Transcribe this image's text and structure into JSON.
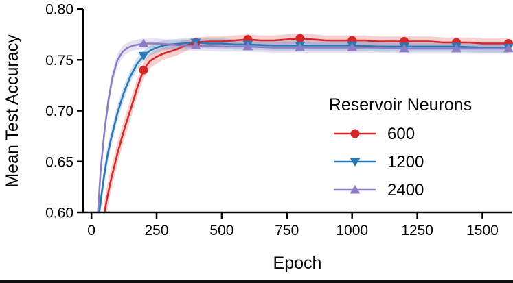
{
  "figure": {
    "background": "#ffffff",
    "axis_color": "#000000"
  },
  "chart_data": {
    "type": "line",
    "title": "",
    "xlabel": "Epoch",
    "ylabel": "Mean Test Accuracy",
    "xlim": [
      -32,
      1612
    ],
    "ylim": [
      0.6,
      0.8
    ],
    "grid": false,
    "xticks": {
      "values": [
        0,
        250,
        500,
        750,
        1000,
        1250,
        1500
      ],
      "labels": [
        "0",
        "250",
        "500",
        "750",
        "1000",
        "1250",
        "1500"
      ]
    },
    "yticks": {
      "values": [
        0.6,
        0.65,
        0.7,
        0.75,
        0.8
      ],
      "labels": [
        "0.60",
        "0.65",
        "0.70",
        "0.75",
        "0.80"
      ]
    },
    "legend": {
      "title": "Reservoir Neurons",
      "position": "center-right"
    },
    "marker_epochs": [
      200,
      400,
      600,
      800,
      1000,
      1200,
      1400,
      1600
    ],
    "band_opacity": 0.22,
    "series": [
      {
        "name": "600",
        "color": "#d62728",
        "marker": "circle",
        "x": [
          50,
          60,
          75,
          100,
          125,
          150,
          175,
          200,
          225,
          250,
          275,
          300,
          325,
          350,
          375,
          400,
          450,
          500,
          550,
          600,
          650,
          700,
          750,
          800,
          850,
          900,
          950,
          1000,
          1050,
          1100,
          1150,
          1200,
          1250,
          1300,
          1350,
          1400,
          1450,
          1500,
          1550,
          1600
        ],
        "y": [
          0.6,
          0.614,
          0.632,
          0.658,
          0.681,
          0.701,
          0.722,
          0.74,
          0.749,
          0.753,
          0.756,
          0.758,
          0.76,
          0.763,
          0.765,
          0.767,
          0.768,
          0.768,
          0.769,
          0.77,
          0.769,
          0.769,
          0.77,
          0.771,
          0.77,
          0.769,
          0.769,
          0.769,
          0.769,
          0.768,
          0.768,
          0.768,
          0.768,
          0.768,
          0.767,
          0.767,
          0.767,
          0.766,
          0.766,
          0.766
        ],
        "band": [
          0.012,
          0.012,
          0.011,
          0.011,
          0.01,
          0.01,
          0.009,
          0.008,
          0.007,
          0.007,
          0.006,
          0.006,
          0.006,
          0.006,
          0.005,
          0.005,
          0.005,
          0.005,
          0.005,
          0.005,
          0.005,
          0.005,
          0.005,
          0.005,
          0.005,
          0.005,
          0.005,
          0.005,
          0.005,
          0.005,
          0.005,
          0.005,
          0.005,
          0.005,
          0.005,
          0.005,
          0.005,
          0.005,
          0.005,
          0.005
        ]
      },
      {
        "name": "1200",
        "color": "#2878b8",
        "marker": "triangle-down",
        "x": [
          30,
          40,
          50,
          60,
          75,
          100,
          125,
          150,
          175,
          200,
          225,
          250,
          275,
          300,
          350,
          400,
          450,
          500,
          550,
          600,
          700,
          800,
          900,
          1000,
          1100,
          1200,
          1300,
          1400,
          1500,
          1600
        ],
        "y": [
          0.6,
          0.62,
          0.638,
          0.654,
          0.672,
          0.698,
          0.718,
          0.734,
          0.746,
          0.754,
          0.759,
          0.762,
          0.764,
          0.765,
          0.766,
          0.767,
          0.766,
          0.766,
          0.765,
          0.765,
          0.764,
          0.764,
          0.764,
          0.764,
          0.763,
          0.763,
          0.763,
          0.763,
          0.762,
          0.762
        ],
        "band": [
          0.01,
          0.01,
          0.009,
          0.009,
          0.008,
          0.008,
          0.007,
          0.006,
          0.006,
          0.005,
          0.005,
          0.005,
          0.005,
          0.005,
          0.005,
          0.005,
          0.005,
          0.005,
          0.005,
          0.005,
          0.005,
          0.005,
          0.005,
          0.005,
          0.005,
          0.005,
          0.005,
          0.005,
          0.005,
          0.005
        ]
      },
      {
        "name": "2400",
        "color": "#8d7dc4",
        "marker": "triangle-up",
        "x": [
          25,
          35,
          50,
          65,
          80,
          100,
          120,
          140,
          160,
          180,
          200,
          250,
          300,
          350,
          400,
          500,
          600,
          700,
          800,
          900,
          1000,
          1100,
          1200,
          1300,
          1400,
          1500,
          1600
        ],
        "y": [
          0.6,
          0.64,
          0.68,
          0.71,
          0.732,
          0.75,
          0.758,
          0.762,
          0.764,
          0.765,
          0.766,
          0.766,
          0.765,
          0.764,
          0.764,
          0.763,
          0.763,
          0.762,
          0.762,
          0.762,
          0.762,
          0.762,
          0.761,
          0.761,
          0.761,
          0.761,
          0.761
        ],
        "band": [
          0.009,
          0.009,
          0.008,
          0.008,
          0.007,
          0.006,
          0.006,
          0.005,
          0.005,
          0.005,
          0.005,
          0.005,
          0.005,
          0.005,
          0.005,
          0.005,
          0.005,
          0.005,
          0.005,
          0.005,
          0.005,
          0.005,
          0.005,
          0.005,
          0.005,
          0.005,
          0.005
        ]
      }
    ]
  }
}
